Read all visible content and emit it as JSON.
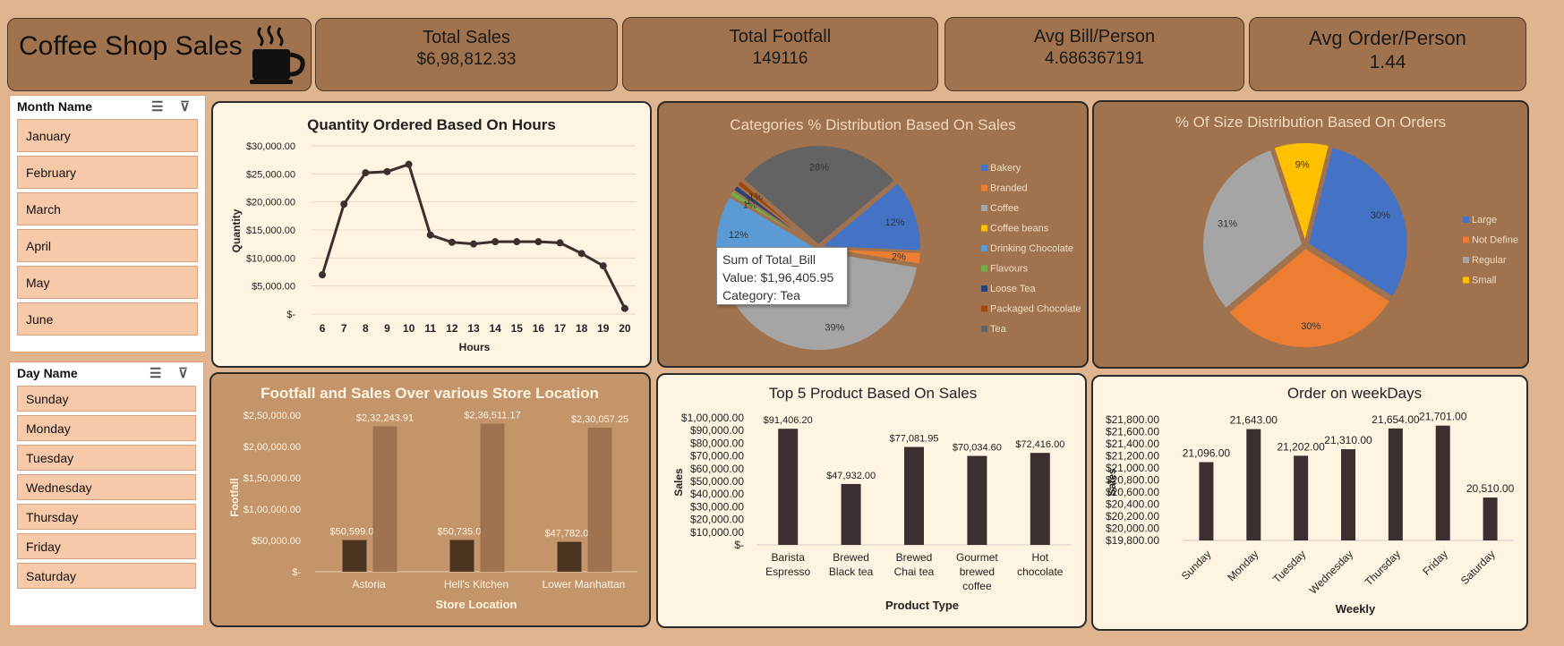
{
  "header": {
    "title": "Coffee Shop Sales",
    "logo_icon": "coffee-cup-icon"
  },
  "kpis": [
    {
      "label": "Total Sales",
      "value": "$6,98,812.33"
    },
    {
      "label": "Total Footfall",
      "value": "149116"
    },
    {
      "label": "Avg Bill/Person",
      "value": "4.686367191"
    },
    {
      "label": "Avg Order/Person",
      "value": "1.44"
    }
  ],
  "month_slicer": {
    "title": "Month Name",
    "items": [
      "January",
      "February",
      "March",
      "April",
      "May",
      "June"
    ]
  },
  "day_slicer": {
    "title": "Day Name",
    "items": [
      "Sunday",
      "Monday",
      "Tuesday",
      "Wednesday",
      "Thursday",
      "Friday",
      "Saturday"
    ]
  },
  "tooltip": {
    "line1": "Sum of Total_Bill",
    "line2": "Value:  $1,96,405.95",
    "line3": "Category: Tea"
  },
  "colors": {
    "panel_light": "#fff4e2",
    "panel_brown": "#a0734e",
    "panel_tan": "#c4956a",
    "bar_dark": "#3b2f2f",
    "accent_blue": "#4472c4",
    "accent_orange": "#ed7d31",
    "accent_gray": "#a5a5a5",
    "accent_yellow": "#ffc000"
  },
  "chart_data": [
    {
      "type": "line",
      "title": "Quantity Ordered Based On Hours",
      "xlabel": "Hours",
      "ylabel": "Quantity",
      "x": [
        "6",
        "7",
        "8",
        "9",
        "10",
        "11",
        "12",
        "13",
        "14",
        "15",
        "16",
        "17",
        "18",
        "19",
        "20"
      ],
      "values": [
        7000,
        19600,
        25200,
        25400,
        26700,
        14100,
        12800,
        12500,
        12900,
        12900,
        12900,
        12700,
        10800,
        8600,
        1000
      ],
      "ylim": [
        0,
        30000
      ],
      "y_ticks": [
        "$-",
        "$5,000.00",
        "$10,000.00",
        "$15,000.00",
        "$20,000.00",
        "$25,000.00",
        "$30,000.00"
      ]
    },
    {
      "type": "pie",
      "title": "Categories % Distribution Based On Sales",
      "categories": [
        "Bakery",
        "Branded",
        "Coffee",
        "Coffee beans",
        "Drinking Chocolate",
        "Flavours",
        "Loose Tea",
        "Packaged Chocolate",
        "Tea"
      ],
      "values": [
        12,
        2,
        39,
        6,
        12,
        1,
        1,
        1,
        28
      ],
      "labels": [
        "12%",
        "2%",
        "39%",
        "6%",
        "12%",
        "1%",
        "1%",
        "1%",
        "28%"
      ],
      "colors": [
        "#4472c4",
        "#ed7d31",
        "#a5a5a5",
        "#ffc000",
        "#5b9bd5",
        "#70ad47",
        "#264478",
        "#9e480e",
        "#636363"
      ],
      "legend": "right"
    },
    {
      "type": "pie",
      "title": "% Of Size Distribution Based On Orders",
      "categories": [
        "Large",
        "Not Define",
        "Regular",
        "Small"
      ],
      "values": [
        30,
        30,
        31,
        9
      ],
      "labels": [
        "30%",
        "30%",
        "31%",
        "9%"
      ],
      "colors": [
        "#4472c4",
        "#ed7d31",
        "#a5a5a5",
        "#ffc000"
      ],
      "legend": "right"
    },
    {
      "type": "bar",
      "title": "Footfall and Sales Over various Store Location",
      "xlabel": "Store Location",
      "ylabel": "Footfall",
      "categories": [
        "Astoria",
        "Hell's Kitchen",
        "Lower Manhattan"
      ],
      "series": [
        {
          "values": [
            50599,
            50735,
            47782
          ],
          "labels": [
            "$50,599.00",
            "$50,735.00",
            "$47,782.00"
          ]
        },
        {
          "values": [
            232243.91,
            236511.17,
            230057.25
          ],
          "labels": [
            "$2,32,243.91",
            "$2,36,511.17",
            "$2,30,057.25"
          ]
        }
      ],
      "ylim": [
        0,
        250000
      ],
      "y_ticks": [
        "$-",
        "$50,000.00",
        "$1,00,000.00",
        "$1,50,000.00",
        "$2,00,000.00",
        "$2,50,000.00"
      ]
    },
    {
      "type": "bar",
      "title": "Top 5 Product Based On Sales",
      "xlabel": "Product Type",
      "ylabel": "Sales",
      "categories": [
        [
          "Barista",
          "Espresso"
        ],
        [
          "Brewed",
          "Black tea"
        ],
        [
          "Brewed",
          "Chai tea"
        ],
        [
          "Gourmet",
          "brewed",
          "coffee"
        ],
        [
          "Hot",
          "chocolate"
        ]
      ],
      "values": [
        91406.2,
        47932,
        77081.95,
        70034.6,
        72416
      ],
      "labels": [
        "$91,406.20",
        "$47,932.00",
        "$77,081.95",
        "$70,034.60",
        "$72,416.00"
      ],
      "ylim": [
        0,
        100000
      ],
      "y_ticks": [
        "$-",
        "$10,000.00",
        "$20,000.00",
        "$30,000.00",
        "$40,000.00",
        "$50,000.00",
        "$60,000.00",
        "$70,000.00",
        "$80,000.00",
        "$90,000.00",
        "$1,00,000.00"
      ]
    },
    {
      "type": "bar",
      "title": "Order on weekDays",
      "xlabel": "Weekly",
      "ylabel": "Sales",
      "categories": [
        "Sunday",
        "Monday",
        "Tuesday",
        "Wednesday",
        "Thursday",
        "Friday",
        "Saturday"
      ],
      "values": [
        21096,
        21643,
        21202,
        21310,
        21654,
        21701,
        20510
      ],
      "labels": [
        "21,096.00",
        "21,643.00",
        "21,202.00",
        "21,310.00",
        "21,654.00",
        "21,701.00",
        "20,510.00"
      ],
      "ylim": [
        19800,
        21800
      ],
      "y_ticks": [
        "$19,800.00",
        "$20,000.00",
        "$20,200.00",
        "$20,400.00",
        "$20,600.00",
        "$20,800.00",
        "$21,000.00",
        "$21,200.00",
        "$21,400.00",
        "$21,600.00",
        "$21,800.00"
      ]
    }
  ]
}
